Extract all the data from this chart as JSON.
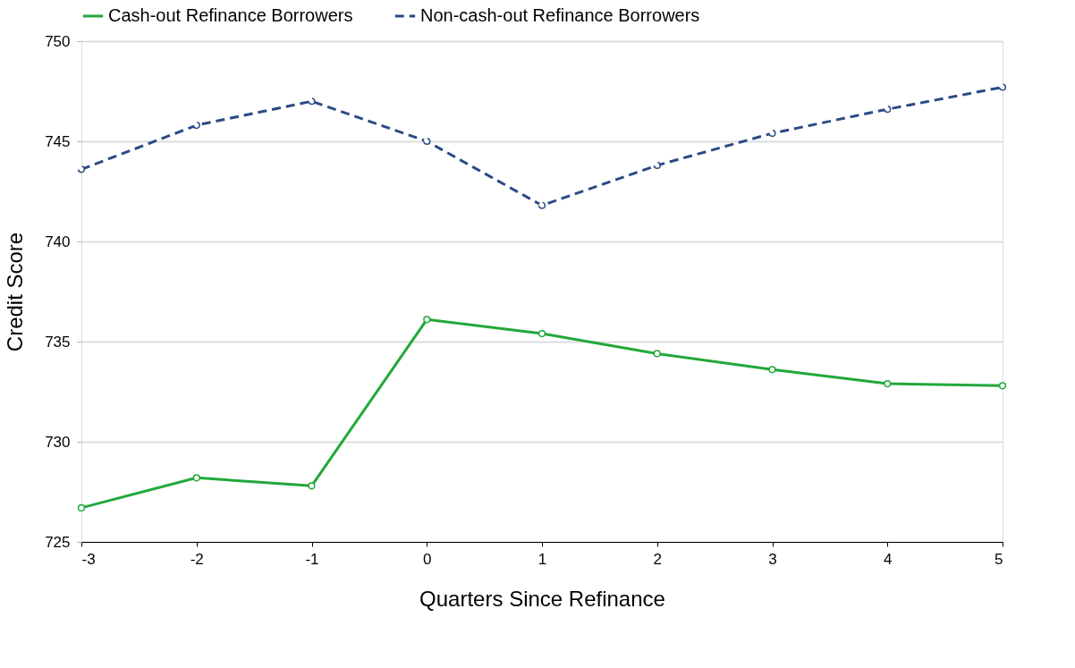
{
  "chart_data": {
    "type": "line",
    "xlabel": "Quarters Since Refinance",
    "ylabel": "Credit Score",
    "x": [
      -3,
      -2,
      -1,
      0,
      1,
      2,
      3,
      4,
      5
    ],
    "xlim": [
      -3,
      5
    ],
    "xticks": [
      -3,
      -2,
      -1,
      0,
      1,
      2,
      3,
      4,
      5
    ],
    "ylim": [
      725,
      750
    ],
    "yticks": [
      725,
      730,
      735,
      740,
      745,
      750
    ],
    "grid": "y",
    "legend": "top",
    "marker": "circle",
    "series": [
      {
        "name": "Cash-out Refinance Borrowers",
        "color": "#22a83a",
        "line_style": "solid",
        "values": [
          726.7,
          728.2,
          727.8,
          736.1,
          735.4,
          734.4,
          733.6,
          732.9,
          732.8
        ]
      },
      {
        "name": "Non-cash-out Refinance Borrowers",
        "color": "#2a4a85",
        "line_style": "dashed",
        "values": [
          743.6,
          745.8,
          747.0,
          745.0,
          741.8,
          743.8,
          745.4,
          746.6,
          747.7
        ]
      }
    ]
  }
}
